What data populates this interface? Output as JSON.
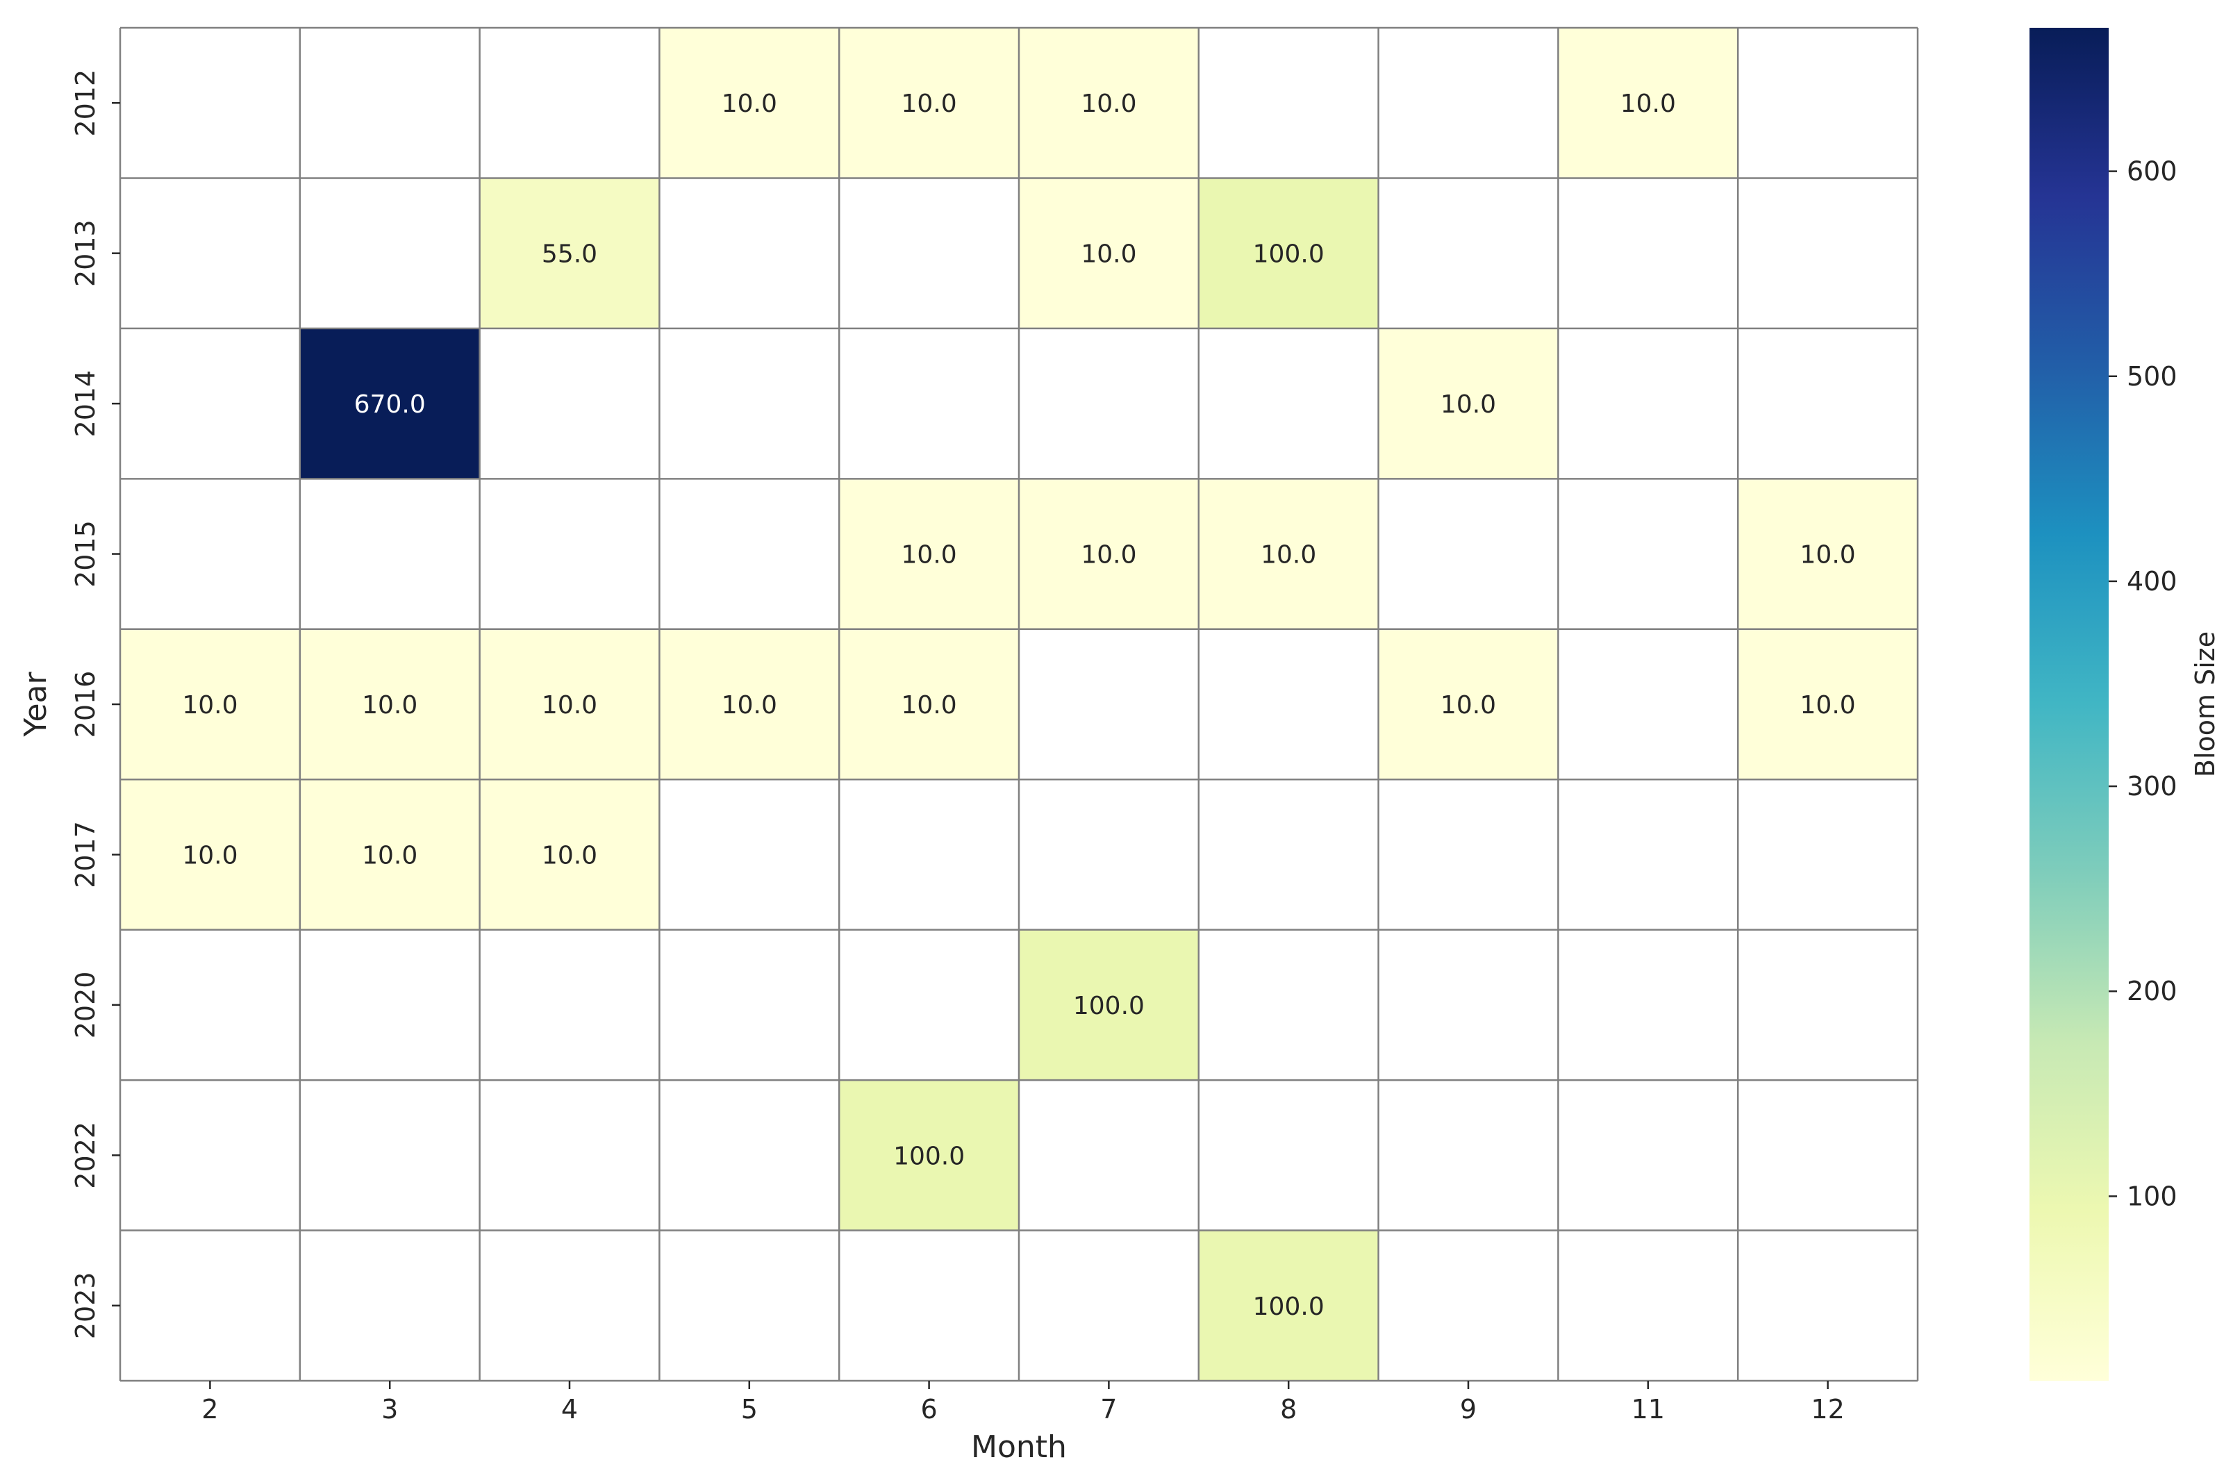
{
  "chart_data": {
    "type": "heatmap",
    "title": "",
    "xlabel": "Month",
    "ylabel": "Year",
    "x": [
      "2",
      "3",
      "4",
      "5",
      "6",
      "7",
      "8",
      "9",
      "11",
      "12"
    ],
    "y": [
      "2012",
      "2013",
      "2014",
      "2015",
      "2016",
      "2017",
      "2020",
      "2022",
      "2023"
    ],
    "values": [
      [
        null,
        null,
        null,
        10.0,
        10.0,
        10.0,
        null,
        null,
        10.0,
        null
      ],
      [
        null,
        null,
        55.0,
        null,
        null,
        10.0,
        100.0,
        null,
        null,
        null
      ],
      [
        null,
        670.0,
        null,
        null,
        null,
        null,
        null,
        10.0,
        null,
        null
      ],
      [
        null,
        null,
        null,
        null,
        10.0,
        10.0,
        10.0,
        null,
        null,
        10.0
      ],
      [
        10.0,
        10.0,
        10.0,
        10.0,
        10.0,
        null,
        null,
        10.0,
        null,
        10.0
      ],
      [
        10.0,
        10.0,
        10.0,
        null,
        null,
        null,
        null,
        null,
        null,
        null
      ],
      [
        null,
        null,
        null,
        null,
        null,
        100.0,
        null,
        null,
        null,
        null
      ],
      [
        null,
        null,
        null,
        null,
        100.0,
        null,
        null,
        null,
        null,
        null
      ],
      [
        null,
        null,
        null,
        null,
        null,
        null,
        100.0,
        null,
        null,
        null
      ]
    ],
    "value_format": "0.1f",
    "colormap": "YlGnBu",
    "colorbar": {
      "label": "Bloom Size",
      "range": [
        10,
        670
      ],
      "ticks": [
        100,
        200,
        300,
        400,
        500,
        600
      ]
    },
    "grid_color": "#808080"
  }
}
